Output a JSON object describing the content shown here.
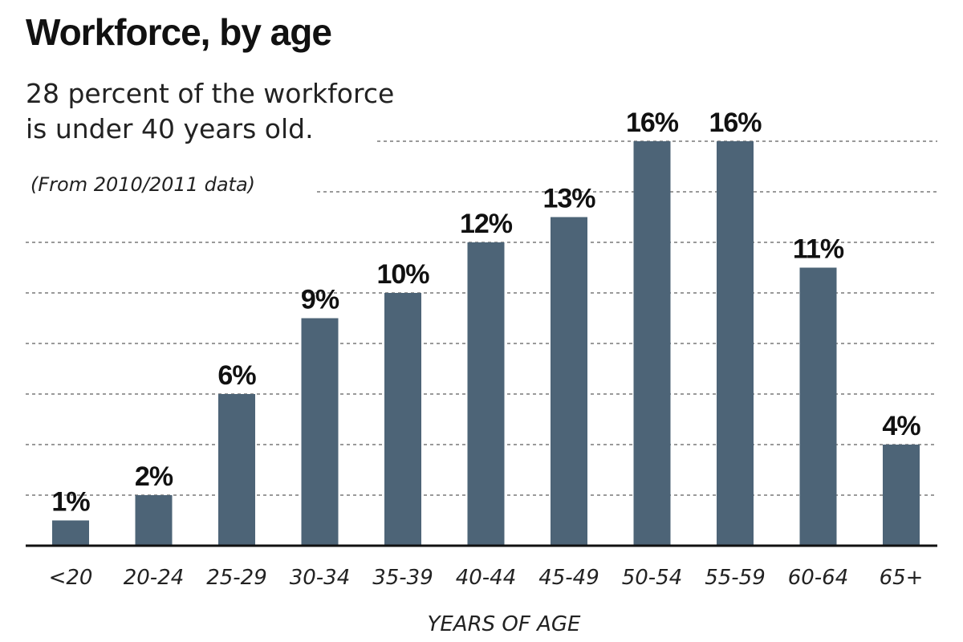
{
  "chart_data": {
    "type": "bar",
    "title": "Workforce, by age",
    "subtitle_lines": [
      "28 percent of the workforce",
      "is under 40 years old."
    ],
    "note": "(From 2010/2011 data)",
    "xlabel": "YEARS OF AGE",
    "ylabel": "",
    "categories": [
      "<20",
      "20-24",
      "25-29",
      "30-34",
      "35-39",
      "40-44",
      "45-49",
      "50-54",
      "55-59",
      "60-64",
      "65+"
    ],
    "values": [
      1,
      2,
      6,
      9,
      10,
      12,
      13,
      16,
      16,
      11,
      4
    ],
    "value_labels": [
      "1%",
      "2%",
      "6%",
      "9%",
      "10%",
      "12%",
      "13%",
      "16%",
      "16%",
      "11%",
      "4%"
    ],
    "ylim": [
      0,
      18
    ],
    "grid": true,
    "legend": "none",
    "colors": {
      "bar": "#4d6477",
      "text": "#111111",
      "grid": "#9a9a9a"
    }
  }
}
